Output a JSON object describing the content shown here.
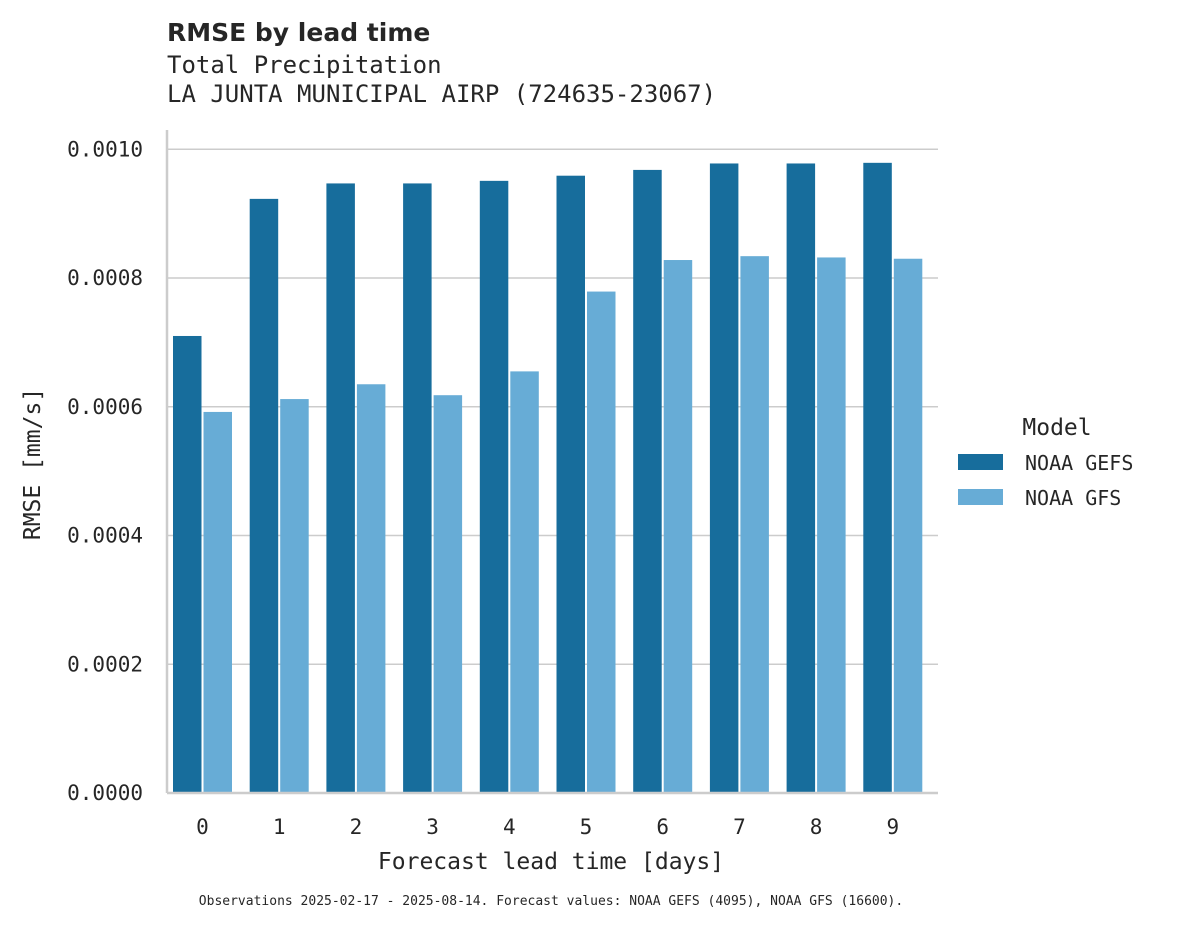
{
  "chart_data": {
    "type": "bar",
    "title": "RMSE by lead time",
    "subtitle_lines": [
      "Total Precipitation",
      "LA JUNTA MUNICIPAL AIRP (724635-23067)"
    ],
    "xlabel": "Forecast lead time [days]",
    "ylabel": "RMSE [mm/s]",
    "categories": [
      "0",
      "1",
      "2",
      "3",
      "4",
      "5",
      "6",
      "7",
      "8",
      "9"
    ],
    "ylim": [
      0,
      0.00103
    ],
    "yticks": [
      "0.0000",
      "0.0002",
      "0.0004",
      "0.0006",
      "0.0008",
      "0.0010"
    ],
    "ytick_values": [
      0,
      0.0002,
      0.0004,
      0.0006,
      0.0008,
      0.001
    ],
    "grid": "horizontal",
    "legend": {
      "title": "Model",
      "placement": "right"
    },
    "series": [
      {
        "name": "NOAA GEFS",
        "color": "#176d9c",
        "values": [
          0.00071,
          0.000923,
          0.000947,
          0.000947,
          0.000951,
          0.000959,
          0.000968,
          0.000978,
          0.000978,
          0.000979
        ]
      },
      {
        "name": "NOAA GFS",
        "color": "#67acd6",
        "values": [
          0.000592,
          0.000612,
          0.000635,
          0.000618,
          0.000655,
          0.000779,
          0.000828,
          0.000834,
          0.000832,
          0.00083
        ]
      }
    ],
    "footnote": "Observations 2025-02-17 - 2025-08-14. Forecast values: NOAA GEFS (4095), NOAA GFS (16600)."
  }
}
